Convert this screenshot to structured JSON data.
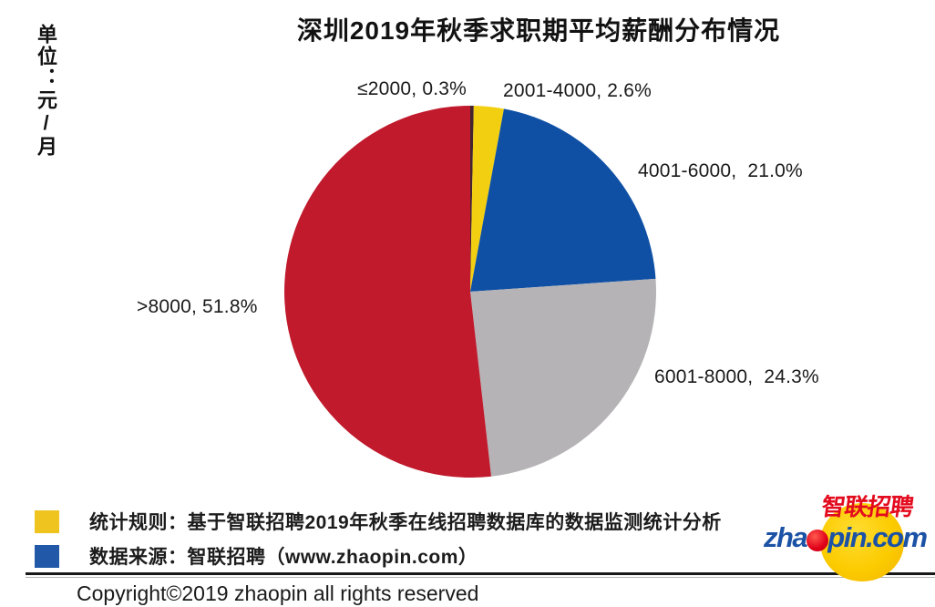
{
  "title": "深圳2019年秋季求职期平均薪酬分布情况",
  "unit_label": "单位：元/月",
  "chart_data": {
    "type": "pie",
    "title": "深圳2019年秋季求职期平均薪酬分布情况",
    "unit": "元/月",
    "direction": "clockwise",
    "start_angle_deg": 0,
    "legend_position": "bottom-left",
    "slices": [
      {
        "label": "≤2000",
        "value": 0.3,
        "color": "#44252e",
        "label_text": "≤2000, 0.3%"
      },
      {
        "label": "2001-4000",
        "value": 2.6,
        "color": "#f3cf11",
        "label_text": "2001-4000, 2.6%"
      },
      {
        "label": "4001-6000",
        "value": 21.0,
        "color": "#0f50a5",
        "label_text": "4001-6000,  21.0%"
      },
      {
        "label": "6001-8000",
        "value": 24.3,
        "color": "#b5b3b6",
        "label_text": "6001-8000,  24.3%"
      },
      {
        "label": ">8000",
        "value": 51.8,
        "color": "#c01a2c",
        "label_text": ">8000, 51.8%"
      }
    ]
  },
  "legend": {
    "items": [
      {
        "color": "#efc41f",
        "text": "统计规则：基于智联招聘2019年秋季在线招聘数据库的数据监测统计分析"
      },
      {
        "color": "#2159a8",
        "text": "数据来源：智联招聘（www.zhaopin.com）"
      }
    ]
  },
  "footer": {
    "copyright": "Copyright©2019 zhaopin all rights reserved"
  },
  "logo": {
    "brand": "智联招聘",
    "domain": "zhaopin.com",
    "domain_left": "zha",
    "domain_right": "pin.com"
  }
}
